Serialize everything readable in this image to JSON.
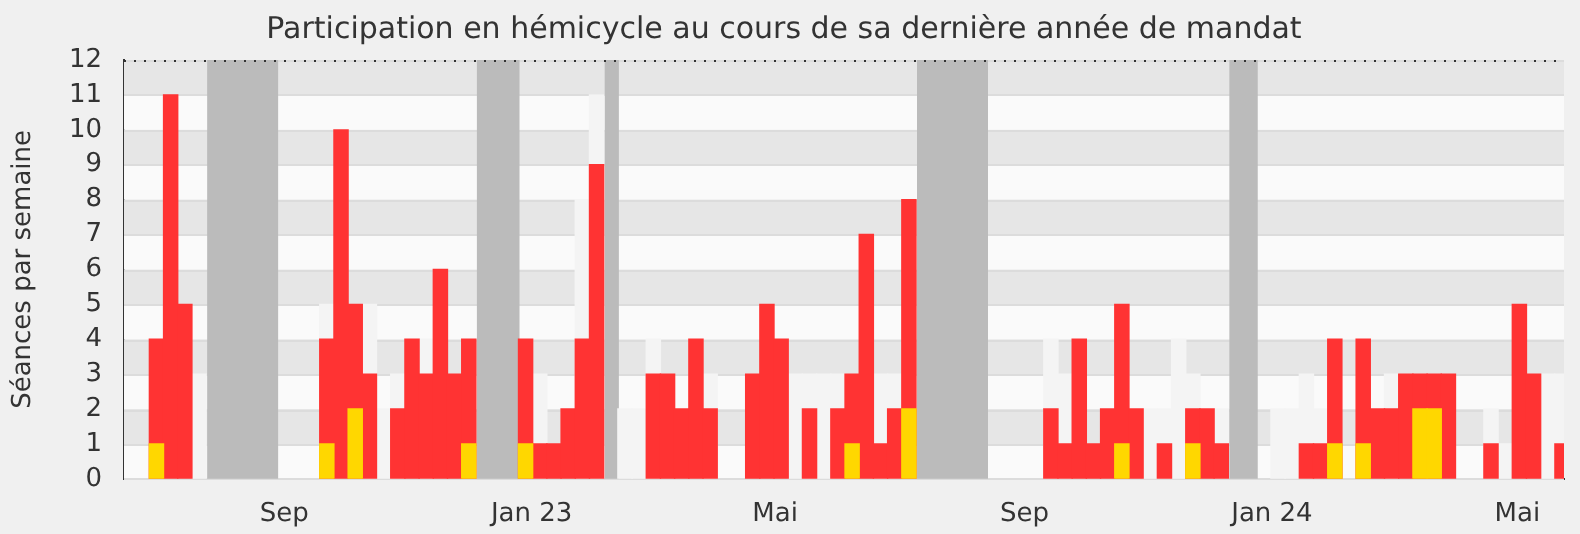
{
  "chart_data": {
    "type": "bar",
    "title": "Participation en hémicycle au cours de sa dernière année de mandat",
    "ylabel": "Séances par semaine",
    "xlim": [
      "2022-06-14",
      "2024-05-24"
    ],
    "xticks": [
      {
        "value": "2022-09-01",
        "label": "Sep"
      },
      {
        "value": "2023-01-01",
        "label": "Jan 23"
      },
      {
        "value": "2023-05-01",
        "label": "Mai"
      },
      {
        "value": "2023-09-01",
        "label": "Sep"
      },
      {
        "value": "2024-01-01",
        "label": "Jan 24"
      },
      {
        "value": "2024-05-01",
        "label": "Mai"
      }
    ],
    "series": [
      {
        "color": "#f4f4f4",
        "x": [
          "2022-07-21",
          "2022-09-22",
          "2022-10-13",
          "2022-10-20",
          "2022-10-27",
          "2022-11-10",
          "2023-01-05",
          "2023-01-26",
          "2023-02-02",
          "2023-02-16",
          "2023-02-23",
          "2023-03-02",
          "2023-03-30",
          "2023-05-11",
          "2023-05-18",
          "2023-05-25",
          "2023-06-01",
          "2023-06-22",
          "2023-06-29",
          "2023-09-14",
          "2023-09-21",
          "2023-11-02",
          "2023-11-09",
          "2023-11-16",
          "2023-11-23",
          "2023-12-07",
          "2024-01-04",
          "2024-01-11",
          "2024-01-18",
          "2024-01-25",
          "2024-02-29",
          "2024-04-18",
          "2024-04-25",
          "2024-05-16",
          "2024-05-23"
        ],
        "values": [
          3,
          5,
          5,
          2,
          3,
          4,
          3,
          8,
          11,
          2,
          2,
          4,
          3,
          3,
          3,
          3,
          3,
          3,
          3,
          4,
          3,
          2,
          2,
          4,
          3,
          2,
          2,
          2,
          3,
          2,
          3,
          2,
          1,
          3,
          3
        ]
      },
      {
        "color": "#ff3333",
        "x": [
          "2022-06-30",
          "2022-07-07",
          "2022-07-14",
          "2022-09-22",
          "2022-09-29",
          "2022-10-06",
          "2022-10-13",
          "2022-10-27",
          "2022-11-03",
          "2022-11-10",
          "2022-11-17",
          "2022-11-24",
          "2022-12-01",
          "2022-12-29",
          "2023-01-05",
          "2023-01-12",
          "2023-01-19",
          "2023-01-26",
          "2023-02-02",
          "2023-03-02",
          "2023-03-09",
          "2023-03-16",
          "2023-03-23",
          "2023-03-30",
          "2023-04-20",
          "2023-04-27",
          "2023-05-04",
          "2023-05-18",
          "2023-06-01",
          "2023-06-08",
          "2023-06-15",
          "2023-06-22",
          "2023-06-29",
          "2023-07-06",
          "2023-09-14",
          "2023-09-21",
          "2023-09-28",
          "2023-10-05",
          "2023-10-12",
          "2023-10-19",
          "2023-10-26",
          "2023-11-09",
          "2023-11-23",
          "2023-11-30",
          "2023-12-07",
          "2024-01-18",
          "2024-01-25",
          "2024-02-01",
          "2024-02-15",
          "2024-02-22",
          "2024-02-29",
          "2024-03-07",
          "2024-03-14",
          "2024-03-21",
          "2024-03-28",
          "2024-04-18",
          "2024-05-02",
          "2024-05-09",
          "2024-05-23"
        ],
        "values": [
          4,
          11,
          5,
          4,
          10,
          5,
          3,
          2,
          4,
          3,
          6,
          3,
          4,
          4,
          1,
          1,
          2,
          4,
          9,
          3,
          3,
          2,
          4,
          2,
          3,
          5,
          4,
          2,
          2,
          3,
          7,
          1,
          2,
          8,
          2,
          1,
          4,
          1,
          2,
          5,
          2,
          1,
          2,
          2,
          1,
          1,
          1,
          4,
          4,
          2,
          2,
          3,
          3,
          3,
          3,
          1,
          5,
          3,
          1
        ]
      },
      {
        "color": "#ffd700",
        "x": [
          "2022-06-30",
          "2022-09-22",
          "2022-10-06",
          "2022-12-01",
          "2022-12-29",
          "2023-06-08",
          "2023-07-06",
          "2023-10-19",
          "2023-11-23",
          "2024-02-01",
          "2024-02-15",
          "2024-03-14",
          "2024-03-21"
        ],
        "values": [
          1,
          1,
          2,
          1,
          1,
          1,
          2,
          1,
          1,
          1,
          1,
          2,
          2
        ]
      }
    ],
    "bands": [
      {
        "axis": "x",
        "from": "2022-07-25",
        "to": "2022-08-29",
        "color": "#bbbbbb"
      },
      {
        "axis": "x",
        "from": "2022-12-05",
        "to": "2022-12-26",
        "color": "#bbbbbb"
      },
      {
        "axis": "x",
        "from": "2023-02-06",
        "to": "2023-02-13",
        "color": "#bbbbbb"
      },
      {
        "axis": "x",
        "from": "2023-07-10",
        "to": "2023-08-14",
        "color": "#bbbbbb"
      },
      {
        "axis": "x",
        "from": "2023-12-11",
        "to": "2023-12-25",
        "color": "#bbbbbb"
      }
    ],
    "ylim": [
      0,
      12
    ],
    "yticks": [
      0,
      1,
      2,
      3,
      4,
      5,
      6,
      7,
      8,
      9,
      10,
      11,
      12
    ],
    "grid": true
  }
}
